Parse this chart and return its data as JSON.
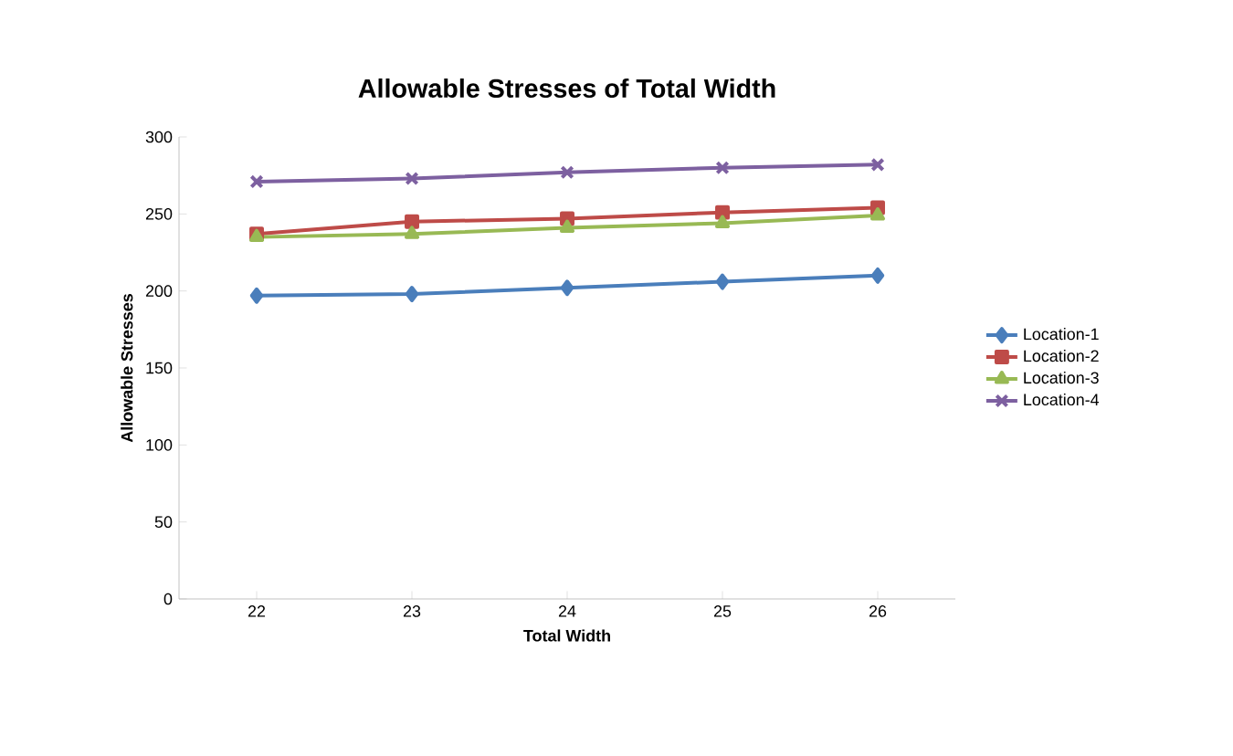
{
  "chart_data": {
    "type": "line",
    "title": "Allowable Stresses of Total Width",
    "xlabel": "Total Width",
    "ylabel": "Allowable Stresses",
    "categories": [
      "22",
      "23",
      "24",
      "25",
      "26"
    ],
    "series": [
      {
        "name": "Location-1",
        "color": "#4a7ebb",
        "marker": "diamond",
        "values": [
          197,
          198,
          202,
          206,
          210
        ]
      },
      {
        "name": "Location-2",
        "color": "#be4b48",
        "marker": "square",
        "values": [
          237,
          245,
          247,
          251,
          254
        ]
      },
      {
        "name": "Location-3",
        "color": "#98b954",
        "marker": "triangle",
        "values": [
          235,
          237,
          241,
          244,
          249
        ]
      },
      {
        "name": "Location-4",
        "color": "#7d60a0",
        "marker": "cross",
        "values": [
          271,
          273,
          277,
          280,
          282
        ]
      }
    ],
    "ylim": [
      0,
      300
    ],
    "yticks": [
      0,
      50,
      100,
      150,
      200,
      250,
      300
    ],
    "grid": false,
    "legend": "right",
    "line_style": "solid"
  }
}
